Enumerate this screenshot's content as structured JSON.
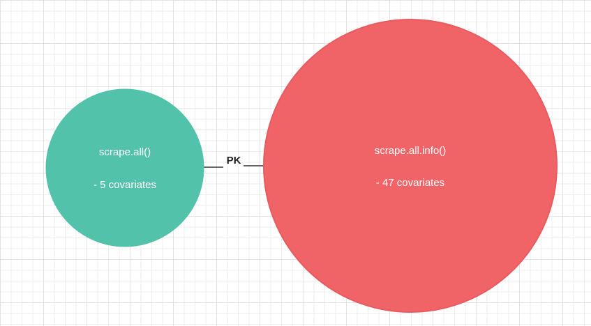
{
  "diagram": {
    "nodes": [
      {
        "id": "left",
        "title": "scrape.all()",
        "detail": "- 5 covariates",
        "fill": "#52c2aa",
        "stroke": "#52c2aa"
      },
      {
        "id": "right",
        "title": "scrape.all.info()",
        "detail": "- 47 covariates",
        "fill": "#f06467",
        "stroke": "#e85a5e"
      }
    ],
    "edge": {
      "label": "PK",
      "color": "#666666"
    }
  }
}
